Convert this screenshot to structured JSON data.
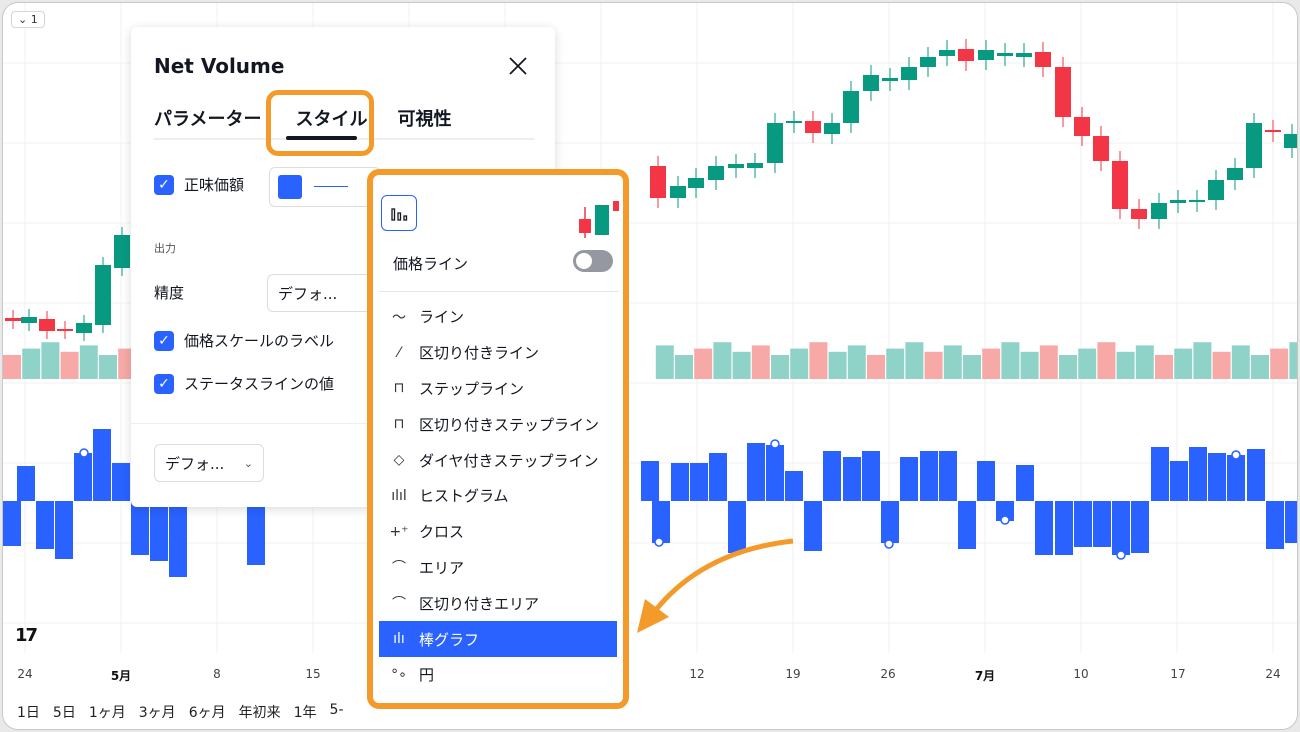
{
  "interval_button": "⌄ 1",
  "x_axis": [
    {
      "label": "24",
      "bold": false
    },
    {
      "label": "5月",
      "bold": true
    },
    {
      "label": "8",
      "bold": false
    },
    {
      "label": "15",
      "bold": false
    },
    {
      "label": "12",
      "bold": false
    },
    {
      "label": "19",
      "bold": false
    },
    {
      "label": "26",
      "bold": false
    },
    {
      "label": "7月",
      "bold": true
    },
    {
      "label": "10",
      "bold": false
    },
    {
      "label": "17",
      "bold": false
    },
    {
      "label": "24",
      "bold": false
    }
  ],
  "range_buttons": [
    "1日",
    "5日",
    "1ヶ月",
    "3ヶ月",
    "6ヶ月",
    "年初来",
    "1年",
    "5-"
  ],
  "logo": "17",
  "dialog": {
    "title": "Net Volume",
    "tabs": [
      "パラメーター",
      "スタイル",
      "可視性"
    ],
    "active_tab": "スタイル",
    "net_value_label": "正味価額",
    "series_color": "#2962ff",
    "output_section": "出力",
    "precision_label": "精度",
    "precision_value": "デフォ...",
    "price_scale_label": "価格スケールのラベル",
    "status_line_label": "ステータスラインの値",
    "defaults_button": "デフォ..."
  },
  "style_menu": {
    "price_line_label": "価格ライン",
    "price_line_on": false,
    "items": [
      {
        "icon": "〜",
        "label": "ライン",
        "selected": false
      },
      {
        "icon": "⁄",
        "label": "区切り付きライン",
        "selected": false
      },
      {
        "icon": "⊓",
        "label": "ステップライン",
        "selected": false
      },
      {
        "icon": "⊓",
        "label": "区切り付きステップライン",
        "selected": false
      },
      {
        "icon": "◇",
        "label": "ダイヤ付きステップライン",
        "selected": false
      },
      {
        "icon": "ılıl",
        "label": "ヒストグラム",
        "selected": false
      },
      {
        "icon": "+⁺",
        "label": "クロス",
        "selected": false
      },
      {
        "icon": "⌒",
        "label": "エリア",
        "selected": false
      },
      {
        "icon": "⌒",
        "label": "区切り付きエリア",
        "selected": false
      },
      {
        "icon": "ılı",
        "label": "棒グラフ",
        "selected": true
      },
      {
        "icon": "°∘",
        "label": "円",
        "selected": false
      }
    ]
  },
  "colors": {
    "up": "#089981",
    "down": "#f23645",
    "volume_up": "#8fd3c8",
    "volume_down": "#f7a9a7",
    "net_volume": "#2962ff",
    "highlight": "#f39a2b"
  }
}
